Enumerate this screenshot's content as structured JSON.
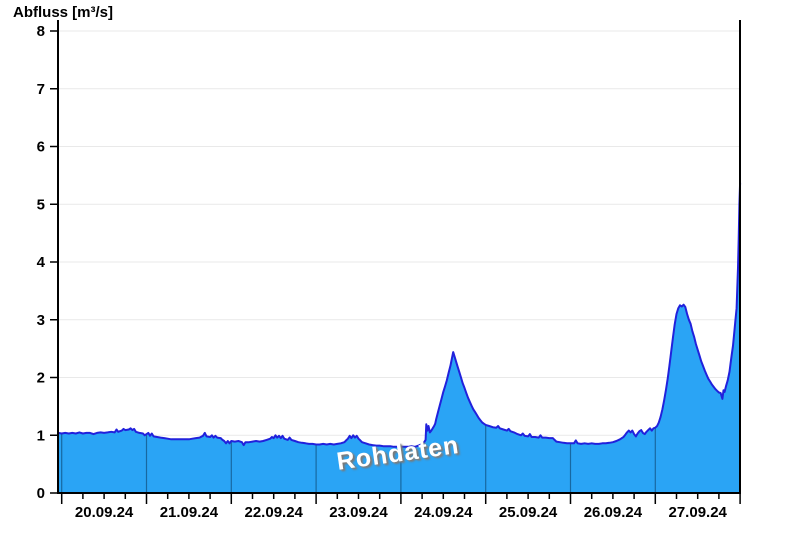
{
  "title": "Abfluss [m³/s]",
  "watermark": "Rohdaten",
  "colors": {
    "fill": "#2AA4F5",
    "line": "#2121DC",
    "grid": "#e9e9e9",
    "axis": "#000000",
    "day_line": "rgba(0,30,60,0.45)",
    "background": "#ffffff",
    "text": "#000000"
  },
  "chart_data": {
    "type": "area",
    "title": "Abfluss [m³/s]",
    "ylabel": "Abfluss [m³/s]",
    "xlabel": "",
    "ylim": [
      0,
      8
    ],
    "y_ticks": [
      0,
      1,
      2,
      3,
      4,
      5,
      6,
      7,
      8
    ],
    "x_labels": [
      "20.09.24",
      "21.09.24",
      "22.09.24",
      "23.09.24",
      "24.09.24",
      "25.09.24",
      "26.09.24",
      "27.09.24"
    ],
    "x_unit": "hours since 20.09.24 00:00",
    "x_range": [
      -1,
      192
    ],
    "minor_tick_hours": 6,
    "major_tick_hours": 24,
    "grid": "horizontal",
    "legend": "none",
    "watermark": "Rohdaten",
    "series": [
      {
        "name": "Abfluss Rohdaten",
        "points": [
          [
            -1,
            1.04
          ],
          [
            0,
            1.03
          ],
          [
            1,
            1.04
          ],
          [
            2,
            1.03
          ],
          [
            3,
            1.04
          ],
          [
            4,
            1.03
          ],
          [
            5,
            1.05
          ],
          [
            6,
            1.03
          ],
          [
            7,
            1.04
          ],
          [
            8,
            1.04
          ],
          [
            9,
            1.02
          ],
          [
            10,
            1.04
          ],
          [
            11,
            1.05
          ],
          [
            12,
            1.04
          ],
          [
            13,
            1.05
          ],
          [
            14,
            1.06
          ],
          [
            15,
            1.05
          ],
          [
            15.5,
            1.1
          ],
          [
            16,
            1.06
          ],
          [
            17,
            1.08
          ],
          [
            17.5,
            1.11
          ],
          [
            18,
            1.09
          ],
          [
            19,
            1.1
          ],
          [
            19.5,
            1.12
          ],
          [
            20,
            1.09
          ],
          [
            20.5,
            1.11
          ],
          [
            21,
            1.06
          ],
          [
            22,
            1.04
          ],
          [
            23,
            1.03
          ],
          [
            23.5,
            1.0
          ],
          [
            24.5,
            1.04
          ],
          [
            25,
            0.99
          ],
          [
            25.5,
            1.03
          ],
          [
            26,
            0.98
          ],
          [
            27,
            0.97
          ],
          [
            28,
            0.96
          ],
          [
            29,
            0.95
          ],
          [
            30,
            0.94
          ],
          [
            31,
            0.93
          ],
          [
            33,
            0.93
          ],
          [
            35,
            0.93
          ],
          [
            36,
            0.93
          ],
          [
            37,
            0.94
          ],
          [
            38,
            0.95
          ],
          [
            39,
            0.96
          ],
          [
            40,
            0.99
          ],
          [
            40.5,
            1.04
          ],
          [
            41,
            0.98
          ],
          [
            42,
            0.97
          ],
          [
            42.5,
            1.0
          ],
          [
            43,
            0.96
          ],
          [
            43.5,
            0.99
          ],
          [
            44,
            0.96
          ],
          [
            45,
            0.95
          ],
          [
            45.5,
            0.92
          ],
          [
            46,
            0.9
          ],
          [
            46.5,
            0.86
          ],
          [
            47,
            0.9
          ],
          [
            47.5,
            0.86
          ],
          [
            48,
            0.9
          ],
          [
            49,
            0.89
          ],
          [
            50,
            0.9
          ],
          [
            51,
            0.88
          ],
          [
            51.5,
            0.83
          ],
          [
            52,
            0.88
          ],
          [
            53,
            0.88
          ],
          [
            54,
            0.89
          ],
          [
            55,
            0.9
          ],
          [
            56,
            0.89
          ],
          [
            57,
            0.9
          ],
          [
            58,
            0.92
          ],
          [
            59,
            0.94
          ],
          [
            59.5,
            0.97
          ],
          [
            60,
            0.95
          ],
          [
            60.5,
            1.0
          ],
          [
            61,
            0.96
          ],
          [
            61.5,
            0.99
          ],
          [
            62,
            0.95
          ],
          [
            62.5,
            0.99
          ],
          [
            63,
            0.94
          ],
          [
            64,
            0.92
          ],
          [
            64.5,
            0.96
          ],
          [
            65,
            0.92
          ],
          [
            66,
            0.9
          ],
          [
            67,
            0.88
          ],
          [
            68,
            0.87
          ],
          [
            69,
            0.86
          ],
          [
            70,
            0.85
          ],
          [
            71,
            0.85
          ],
          [
            72,
            0.84
          ],
          [
            73,
            0.84
          ],
          [
            74,
            0.85
          ],
          [
            75,
            0.84
          ],
          [
            76,
            0.85
          ],
          [
            77,
            0.84
          ],
          [
            78,
            0.85
          ],
          [
            79,
            0.86
          ],
          [
            80,
            0.88
          ],
          [
            80.5,
            0.91
          ],
          [
            81,
            0.94
          ],
          [
            81.5,
            0.99
          ],
          [
            82,
            0.95
          ],
          [
            82.5,
            1.0
          ],
          [
            83,
            0.96
          ],
          [
            83.5,
            0.99
          ],
          [
            84,
            0.94
          ],
          [
            84.5,
            0.91
          ],
          [
            85,
            0.88
          ],
          [
            86,
            0.86
          ],
          [
            87,
            0.84
          ],
          [
            88,
            0.83
          ],
          [
            89,
            0.82
          ],
          [
            90,
            0.82
          ],
          [
            91,
            0.81
          ],
          [
            92,
            0.81
          ],
          [
            93,
            0.81
          ],
          [
            94,
            0.8
          ],
          [
            95,
            0.8
          ],
          [
            96,
            0.8
          ],
          [
            97,
            0.8
          ],
          [
            98,
            0.8
          ],
          [
            99,
            0.81
          ],
          [
            100,
            0.8
          ],
          [
            101,
            0.82
          ],
          [
            102,
            0.85
          ],
          [
            102.6,
            0.88
          ],
          [
            103,
            0.92
          ],
          [
            103.2,
            1.19
          ],
          [
            103.5,
            1.08
          ],
          [
            103.8,
            1.16
          ],
          [
            104.2,
            1.05
          ],
          [
            104.6,
            1.08
          ],
          [
            105,
            1.12
          ],
          [
            105.4,
            1.16
          ],
          [
            105.7,
            1.2
          ],
          [
            106,
            1.28
          ],
          [
            106.5,
            1.4
          ],
          [
            107,
            1.52
          ],
          [
            107.5,
            1.63
          ],
          [
            108,
            1.75
          ],
          [
            108.5,
            1.85
          ],
          [
            109,
            1.95
          ],
          [
            109.5,
            2.08
          ],
          [
            110,
            2.2
          ],
          [
            110.4,
            2.32
          ],
          [
            110.8,
            2.44
          ],
          [
            111.2,
            2.36
          ],
          [
            111.6,
            2.28
          ],
          [
            112,
            2.2
          ],
          [
            112.5,
            2.1
          ],
          [
            113,
            2.0
          ],
          [
            113.5,
            1.9
          ],
          [
            114,
            1.82
          ],
          [
            114.5,
            1.73
          ],
          [
            115,
            1.65
          ],
          [
            115.5,
            1.58
          ],
          [
            116,
            1.51
          ],
          [
            116.5,
            1.45
          ],
          [
            117,
            1.4
          ],
          [
            117.5,
            1.35
          ],
          [
            118,
            1.3
          ],
          [
            118.5,
            1.26
          ],
          [
            119,
            1.22
          ],
          [
            119.5,
            1.2
          ],
          [
            120,
            1.18
          ],
          [
            121,
            1.16
          ],
          [
            122,
            1.14
          ],
          [
            123,
            1.13
          ],
          [
            123.5,
            1.16
          ],
          [
            124,
            1.12
          ],
          [
            125,
            1.1
          ],
          [
            126,
            1.08
          ],
          [
            126.5,
            1.11
          ],
          [
            127,
            1.07
          ],
          [
            128,
            1.05
          ],
          [
            129,
            1.02
          ],
          [
            130,
            1.0
          ],
          [
            130.5,
            1.03
          ],
          [
            131,
            0.99
          ],
          [
            132,
            0.98
          ],
          [
            132.5,
            1.02
          ],
          [
            133,
            0.97
          ],
          [
            134,
            0.97
          ],
          [
            135,
            0.96
          ],
          [
            135.5,
            1.0
          ],
          [
            136,
            0.96
          ],
          [
            137,
            0.96
          ],
          [
            138,
            0.95
          ],
          [
            139,
            0.95
          ],
          [
            139.5,
            0.92
          ],
          [
            140,
            0.89
          ],
          [
            141,
            0.88
          ],
          [
            142,
            0.87
          ],
          [
            143,
            0.86
          ],
          [
            144,
            0.86
          ],
          [
            145,
            0.86
          ],
          [
            145.5,
            0.91
          ],
          [
            146,
            0.86
          ],
          [
            147,
            0.85
          ],
          [
            148,
            0.86
          ],
          [
            149,
            0.85
          ],
          [
            150,
            0.86
          ],
          [
            151,
            0.85
          ],
          [
            152,
            0.85
          ],
          [
            153,
            0.86
          ],
          [
            154,
            0.86
          ],
          [
            155,
            0.87
          ],
          [
            156,
            0.88
          ],
          [
            157,
            0.9
          ],
          [
            158,
            0.93
          ],
          [
            159,
            0.97
          ],
          [
            159.5,
            1.01
          ],
          [
            160,
            1.05
          ],
          [
            160.5,
            1.08
          ],
          [
            161,
            1.05
          ],
          [
            161.5,
            1.08
          ],
          [
            162,
            1.02
          ],
          [
            162.5,
            0.98
          ],
          [
            163,
            1.03
          ],
          [
            163.5,
            1.07
          ],
          [
            164,
            1.09
          ],
          [
            164.5,
            1.04
          ],
          [
            165,
            1.02
          ],
          [
            165.5,
            1.06
          ],
          [
            166,
            1.09
          ],
          [
            166.5,
            1.12
          ],
          [
            167,
            1.08
          ],
          [
            167.5,
            1.12
          ],
          [
            168,
            1.13
          ],
          [
            168.5,
            1.16
          ],
          [
            169,
            1.22
          ],
          [
            169.5,
            1.32
          ],
          [
            170,
            1.45
          ],
          [
            170.5,
            1.6
          ],
          [
            171,
            1.78
          ],
          [
            171.5,
            1.98
          ],
          [
            172,
            2.2
          ],
          [
            172.5,
            2.45
          ],
          [
            173,
            2.7
          ],
          [
            173.5,
            2.92
          ],
          [
            174,
            3.1
          ],
          [
            174.5,
            3.2
          ],
          [
            175,
            3.25
          ],
          [
            175.5,
            3.23
          ],
          [
            176,
            3.26
          ],
          [
            176.5,
            3.22
          ],
          [
            177,
            3.1
          ],
          [
            177.5,
            3.0
          ],
          [
            178,
            2.93
          ],
          [
            178.5,
            2.8
          ],
          [
            179,
            2.7
          ],
          [
            179.5,
            2.58
          ],
          [
            180,
            2.48
          ],
          [
            180.5,
            2.38
          ],
          [
            181,
            2.28
          ],
          [
            181.5,
            2.2
          ],
          [
            182,
            2.12
          ],
          [
            182.5,
            2.05
          ],
          [
            183,
            1.98
          ],
          [
            183.5,
            1.93
          ],
          [
            184,
            1.88
          ],
          [
            184.5,
            1.84
          ],
          [
            185,
            1.8
          ],
          [
            185.5,
            1.77
          ],
          [
            186,
            1.74
          ],
          [
            186.5,
            1.73
          ],
          [
            187,
            1.63
          ],
          [
            187.3,
            1.78
          ],
          [
            187.6,
            1.75
          ],
          [
            188,
            1.85
          ],
          [
            188.5,
            1.95
          ],
          [
            189,
            2.1
          ],
          [
            189.3,
            2.25
          ],
          [
            189.6,
            2.38
          ],
          [
            190,
            2.55
          ],
          [
            190.3,
            2.75
          ],
          [
            190.6,
            2.95
          ],
          [
            191,
            3.2
          ],
          [
            191.2,
            3.55
          ],
          [
            191.4,
            3.9
          ],
          [
            191.6,
            4.4
          ],
          [
            191.8,
            5.0
          ],
          [
            192,
            5.37
          ]
        ]
      }
    ]
  }
}
